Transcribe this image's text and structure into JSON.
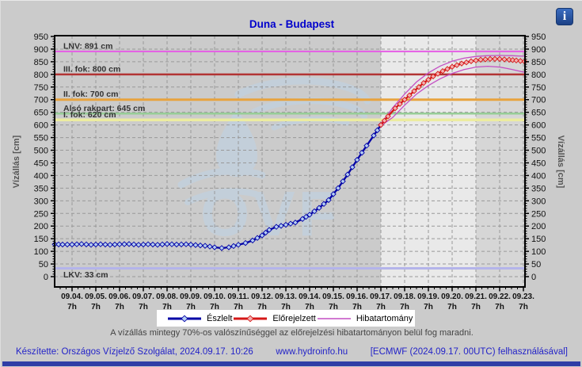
{
  "header": {
    "title": "Duna - Budapest",
    "info_icon": "i"
  },
  "note": "A vízállás mintegy 70%-os valószínűséggel az előrejelzési hibatartományon belül fog maradni.",
  "footer": {
    "credit": "Készítette: Országos Vízjelző Szolgálat, 2024.09.17. 10:26",
    "site": "www.hydroinfo.hu",
    "model": "[ECMWF (2024.09.17. 00UTC) felhasználásával]"
  },
  "chart_data": {
    "type": "line",
    "title": "Duna - Budapest",
    "ylabel_left": "Vízállás [cm]",
    "ylabel_right": "Vízállás [cm]",
    "ylim": [
      0,
      950
    ],
    "ytick_step": 50,
    "y_minor_step": 10,
    "grid": "dashed",
    "x_sub_label": "7h",
    "x_tick_labels": [
      "09.04.",
      "09.05.",
      "09.06.",
      "09.07.",
      "09.08.",
      "09.09.",
      "09.10.",
      "09.11.",
      "09.12.",
      "09.13.",
      "09.14.",
      "09.15.",
      "09.16.",
      "09.17.",
      "09.18.",
      "09.19.",
      "09.20.",
      "09.21.",
      "09.22.",
      "09.23."
    ],
    "regions": [
      {
        "name": "forecast-range-day1-4",
        "from_day": 13,
        "to_day": 17,
        "color": "#e9e9e9"
      },
      {
        "name": "forecast-range-day5-6",
        "from_day": 17,
        "to_day": 19.07,
        "color": "#d6d6d6"
      }
    ],
    "reference_lines": [
      {
        "label": "LNV: 891 cm",
        "value": 891,
        "color": "#e65ce6",
        "width": 2
      },
      {
        "label": "III. fok: 800 cm",
        "value": 800,
        "color": "#b23434",
        "width": 2.5
      },
      {
        "label": "II. fok: 700 cm",
        "value": 700,
        "color": "#e8a33e",
        "width": 3
      },
      {
        "label": "Alsó rakpart: 645 cm",
        "value": 645,
        "color": "#97cd97",
        "width": 2.5
      },
      {
        "label": "I. fok: 620 cm",
        "value": 620,
        "color": "#ececa0",
        "width": 3.5
      },
      {
        "label": "LKV: 33 cm",
        "value": 33,
        "color": "#b4b4ea",
        "width": 3,
        "label_below": true
      }
    ],
    "series": [
      {
        "name": "Észlelt",
        "color": "#0000a6",
        "marker_fill": "#b5cef2",
        "anchors": [
          [
            -0.73,
            128
          ],
          [
            -0.4,
            127
          ],
          [
            0,
            127
          ],
          [
            0.4,
            129
          ],
          [
            0.8,
            126
          ],
          [
            1.2,
            128
          ],
          [
            1.6,
            126
          ],
          [
            2,
            128
          ],
          [
            2.4,
            129
          ],
          [
            2.8,
            126
          ],
          [
            3.2,
            128
          ],
          [
            3.6,
            126
          ],
          [
            4,
            129
          ],
          [
            4.4,
            127
          ],
          [
            4.8,
            128
          ],
          [
            5.2,
            125
          ],
          [
            5.6,
            122
          ],
          [
            6,
            116
          ],
          [
            6.3,
            113
          ],
          [
            6.6,
            116
          ],
          [
            7,
            126
          ],
          [
            7.3,
            133
          ],
          [
            7.6,
            143
          ],
          [
            8,
            163
          ],
          [
            8.3,
            185
          ],
          [
            8.6,
            197
          ],
          [
            9,
            205
          ],
          [
            9.4,
            214
          ],
          [
            9.7,
            228
          ],
          [
            10,
            245
          ],
          [
            10.4,
            272
          ],
          [
            10.8,
            303
          ],
          [
            11.2,
            350
          ],
          [
            11.6,
            404
          ],
          [
            12,
            462
          ],
          [
            12.4,
            518
          ],
          [
            12.7,
            558
          ],
          [
            13,
            600
          ]
        ]
      },
      {
        "name": "Előrejelzett",
        "color": "#d51717",
        "marker_fill": "#f2b0b0",
        "anchors": [
          [
            13,
            600
          ],
          [
            13.3,
            634
          ],
          [
            13.6,
            666
          ],
          [
            14,
            700
          ],
          [
            14.4,
            734
          ],
          [
            14.8,
            766
          ],
          [
            15.2,
            792
          ],
          [
            15.6,
            813
          ],
          [
            16,
            830
          ],
          [
            16.4,
            843
          ],
          [
            16.8,
            852
          ],
          [
            17.2,
            858
          ],
          [
            17.6,
            861
          ],
          [
            18,
            861
          ],
          [
            18.4,
            858
          ],
          [
            18.7,
            855
          ],
          [
            19.05,
            851
          ]
        ]
      },
      {
        "name": "Hibatartomány",
        "color": "#c44fc4",
        "upper": [
          [
            13,
            604
          ],
          [
            13.5,
            668
          ],
          [
            14,
            722
          ],
          [
            14.5,
            770
          ],
          [
            15,
            806
          ],
          [
            15.5,
            833
          ],
          [
            16,
            852
          ],
          [
            16.5,
            864
          ],
          [
            17,
            871
          ],
          [
            17.5,
            874
          ],
          [
            18,
            875
          ],
          [
            18.5,
            874
          ],
          [
            19.05,
            872
          ]
        ],
        "lower": [
          [
            13,
            597
          ],
          [
            13.5,
            630
          ],
          [
            14,
            678
          ],
          [
            14.5,
            722
          ],
          [
            15,
            756
          ],
          [
            15.5,
            783
          ],
          [
            16,
            804
          ],
          [
            16.5,
            819
          ],
          [
            17,
            829
          ],
          [
            17.5,
            832
          ],
          [
            18,
            829
          ],
          [
            18.5,
            820
          ],
          [
            19.05,
            808
          ]
        ]
      }
    ]
  }
}
